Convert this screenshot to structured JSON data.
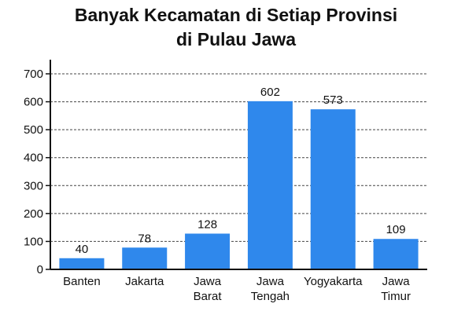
{
  "chart_data": {
    "type": "bar",
    "title": [
      "Banyak Kecamatan di Setiap Provinsi",
      "di Pulau Jawa"
    ],
    "categories": [
      [
        "Banten"
      ],
      [
        "Jakarta"
      ],
      [
        "Jawa",
        "Barat"
      ],
      [
        "Jawa",
        "Tengah"
      ],
      [
        "Yogyakarta"
      ],
      [
        "Jawa",
        "Timur"
      ]
    ],
    "values": [
      40,
      78,
      128,
      602,
      573,
      109
    ],
    "data_labels": [
      "40",
      "78",
      "128",
      "602",
      "573",
      "109"
    ],
    "ylim": [
      0,
      700
    ],
    "yticks": [
      0,
      100,
      200,
      300,
      400,
      500,
      600,
      700
    ],
    "grid": true,
    "grid_style": "dashed",
    "bar_color": "#2f88ec",
    "xlabel": "",
    "ylabel": ""
  }
}
